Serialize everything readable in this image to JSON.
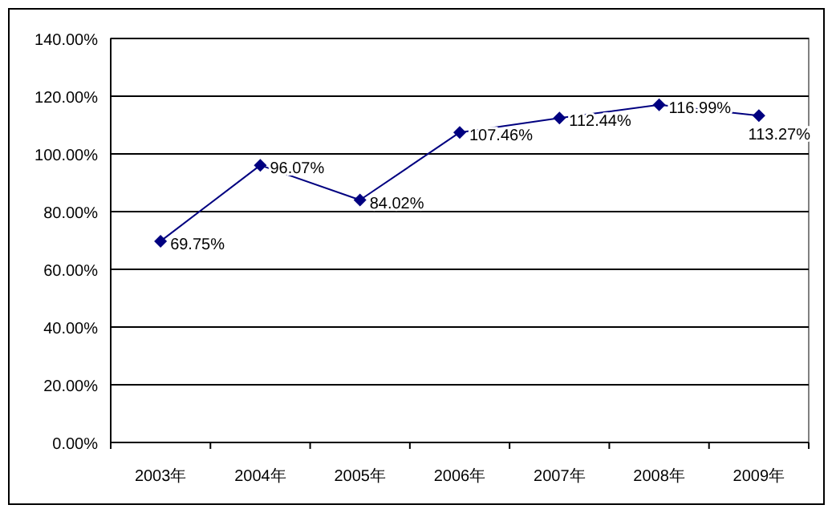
{
  "chart_data": {
    "type": "line",
    "categories": [
      "2003年",
      "2004年",
      "2005年",
      "2006年",
      "2007年",
      "2008年",
      "2009年"
    ],
    "series": [
      {
        "color": "#000080",
        "values": [
          69.75,
          96.07,
          84.02,
          107.46,
          112.44,
          116.99,
          113.27
        ],
        "value_labels": [
          "69.75%",
          "96.07%",
          "84.02%",
          "107.46%",
          "112.44%",
          "116.99%",
          "113.27%"
        ]
      }
    ],
    "ylim": [
      0,
      140
    ],
    "yticks": [
      {
        "value": 0,
        "label": "0.00%"
      },
      {
        "value": 20,
        "label": "20.00%"
      },
      {
        "value": 40,
        "label": "40.00%"
      },
      {
        "value": 60,
        "label": "60.00%"
      },
      {
        "value": 80,
        "label": "80.00%"
      },
      {
        "value": 100,
        "label": "100.00%"
      },
      {
        "value": 120,
        "label": "120.00%"
      },
      {
        "value": 140,
        "label": "140.00%"
      }
    ],
    "grid": "y",
    "marker": "diamond",
    "line_style": "solid"
  }
}
